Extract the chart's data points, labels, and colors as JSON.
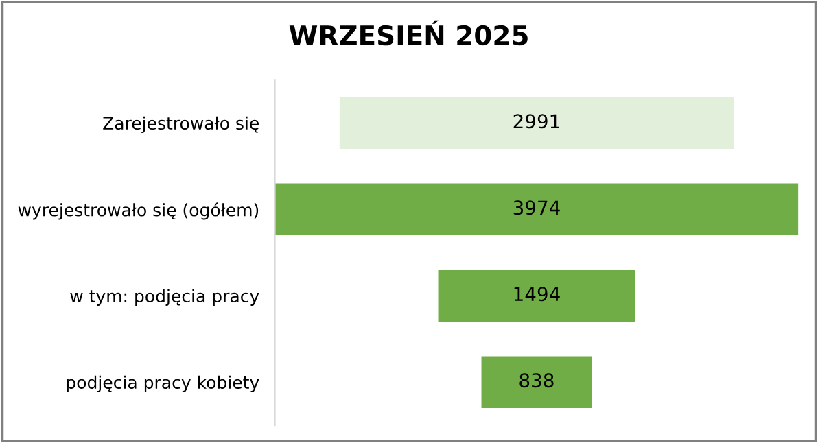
{
  "chart_data": {
    "type": "other",
    "title": "WRZESIEŃ 2025",
    "categories": [
      "Zarejestrowało się",
      "wyrejestrowało się (ogółem)",
      "w tym: podjęcia pracy",
      "podjęcia pracy kobiety"
    ],
    "values": [
      2991,
      3974,
      1494,
      838
    ],
    "colors": [
      "#e2efda",
      "#70ad47",
      "#70ad47",
      "#70ad47"
    ],
    "data_labels": true
  }
}
